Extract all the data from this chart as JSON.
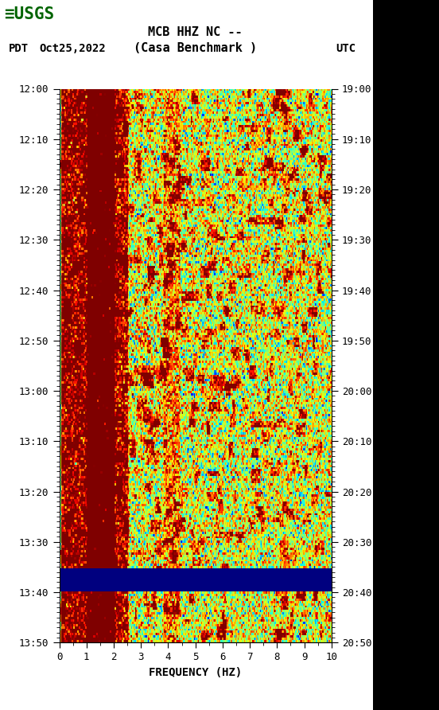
{
  "title_line1": "MCB HHZ NC --",
  "title_line2": "(Casa Benchmark )",
  "label_left": "PDT",
  "label_date": "Oct25,2022",
  "label_right": "UTC",
  "time_ticks_left": [
    "12:00",
    "12:10",
    "12:20",
    "12:30",
    "12:40",
    "12:50",
    "13:00",
    "13:10",
    "13:20",
    "13:30",
    "13:40",
    "13:50"
  ],
  "time_ticks_right": [
    "19:00",
    "19:10",
    "19:20",
    "19:30",
    "19:40",
    "19:50",
    "20:00",
    "20:10",
    "20:20",
    "20:30",
    "20:40",
    "20:50"
  ],
  "freq_min": 0,
  "freq_max": 10,
  "xlabel": "FREQUENCY (HZ)",
  "colormap": "jet",
  "fig_width": 5.52,
  "fig_height": 8.92,
  "background_color": "#ffffff",
  "usgs_logo_color": "#006400",
  "right_panel_color": "#000000",
  "vmin": -8,
  "vmax": 2,
  "seed": 1234
}
